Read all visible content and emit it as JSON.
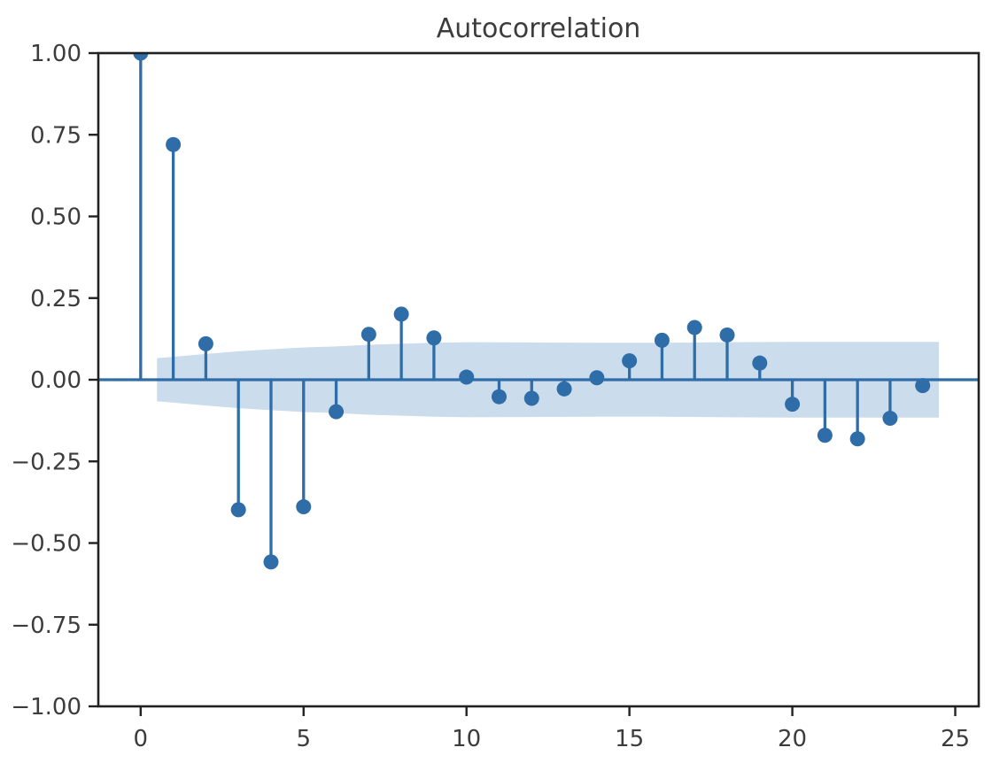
{
  "figure": {
    "background": "#ffffff"
  },
  "chart_data": {
    "type": "stem",
    "subtype": "autocorrelation",
    "title": "Autocorrelation",
    "xlabel": "",
    "ylabel": "",
    "grid": false,
    "legend": null,
    "x": [
      0,
      1,
      2,
      3,
      4,
      5,
      6,
      7,
      8,
      9,
      10,
      11,
      12,
      13,
      14,
      15,
      16,
      17,
      18,
      19,
      20,
      21,
      22,
      23,
      24
    ],
    "values": [
      1.0,
      0.72,
      0.11,
      -0.398,
      -0.558,
      -0.389,
      -0.098,
      0.139,
      0.201,
      0.128,
      0.008,
      -0.052,
      -0.057,
      -0.028,
      0.006,
      0.058,
      0.121,
      0.16,
      0.137,
      0.051,
      -0.075,
      -0.17,
      -0.181,
      -0.118,
      -0.018
    ],
    "confidence_band": {
      "description": "shaded confidence interval, symmetric about zero",
      "points": [
        [
          0.5,
          0.066
        ],
        [
          1,
          0.07
        ],
        [
          2,
          0.079
        ],
        [
          3,
          0.087
        ],
        [
          4,
          0.093
        ],
        [
          5,
          0.099
        ],
        [
          6,
          0.102
        ],
        [
          7,
          0.107
        ],
        [
          8,
          0.11
        ],
        [
          9,
          0.113
        ],
        [
          10,
          0.115
        ],
        [
          12,
          0.114
        ],
        [
          14,
          0.113
        ],
        [
          16,
          0.113
        ],
        [
          18,
          0.115
        ],
        [
          20,
          0.116
        ],
        [
          22,
          0.116
        ],
        [
          24,
          0.116
        ],
        [
          24.5,
          0.116
        ]
      ]
    },
    "xlim": [
      -1.3,
      25.72
    ],
    "ylim": [
      -1.0,
      1.0
    ],
    "x_ticks": [
      {
        "value": 0,
        "label": "0"
      },
      {
        "value": 5,
        "label": "5"
      },
      {
        "value": 10,
        "label": "10"
      },
      {
        "value": 15,
        "label": "15"
      },
      {
        "value": 20,
        "label": "20"
      },
      {
        "value": 25,
        "label": "25"
      }
    ],
    "y_ticks": [
      {
        "value": 1.0,
        "label": "1.00"
      },
      {
        "value": 0.75,
        "label": "0.75"
      },
      {
        "value": 0.5,
        "label": "0.50"
      },
      {
        "value": 0.25,
        "label": "0.25"
      },
      {
        "value": 0.0,
        "label": "0.00"
      },
      {
        "value": -0.25,
        "label": "−0.25"
      },
      {
        "value": -0.5,
        "label": "−0.50"
      },
      {
        "value": -0.75,
        "label": "−0.75"
      },
      {
        "value": -1.0,
        "label": "−1.00"
      }
    ],
    "colors": {
      "stem": "#2f6da8",
      "marker": "#2f6da8",
      "zero_line": "#2f6da8",
      "band_fill": "#cbdcec",
      "spine": "#212121",
      "tick": "#212121",
      "text": "#3c3c3c",
      "background": "#ffffff"
    }
  }
}
